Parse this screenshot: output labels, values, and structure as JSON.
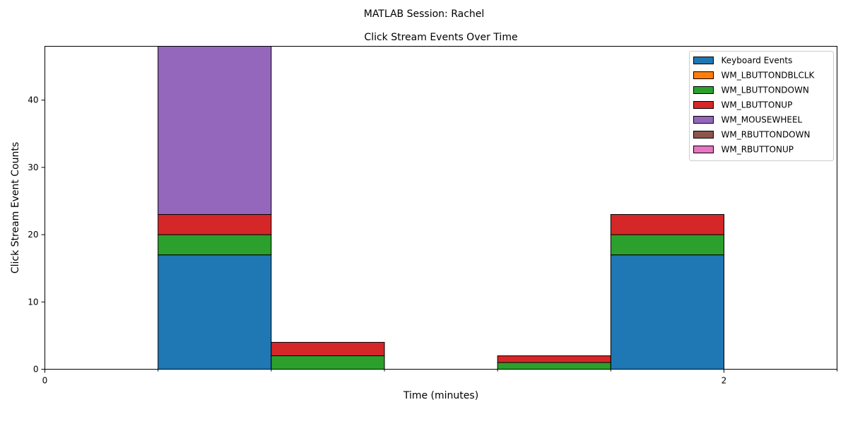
{
  "figure": {
    "suptitle": "MATLAB Session: Rachel"
  },
  "chart_data": {
    "type": "bar",
    "stacked": true,
    "title": "Click Stream Events Over Time",
    "xlabel": "Time (minutes)",
    "ylabel": "Click Stream Event Counts",
    "xlim": [
      0,
      2.333
    ],
    "ylim": [
      0,
      48
    ],
    "xticks": [
      0,
      2
    ],
    "yticks": [
      0,
      10,
      20,
      30,
      40
    ],
    "bin_width_minutes": 0.3333,
    "bins": [
      0,
      0.3333,
      0.6667,
      1.0,
      1.3333,
      1.6667,
      2.0
    ],
    "grid": false,
    "legend_position": "top-right",
    "series": [
      {
        "name": "Keyboard Events",
        "color": "#1f77b4",
        "values": [
          0,
          17,
          0,
          0,
          0,
          17,
          0
        ]
      },
      {
        "name": "WM_LBUTTONDBLCLK",
        "color": "#ff7f0e",
        "values": [
          0,
          0,
          0,
          0,
          0,
          0,
          0
        ]
      },
      {
        "name": "WM_LBUTTONDOWN",
        "color": "#2ca02c",
        "values": [
          0,
          3,
          2,
          0,
          1,
          3,
          0
        ]
      },
      {
        "name": "WM_LBUTTONUP",
        "color": "#d62728",
        "values": [
          0,
          3,
          2,
          0,
          1,
          3,
          0
        ]
      },
      {
        "name": "WM_MOUSEWHEEL",
        "color": "#9467bd",
        "values": [
          0,
          25,
          0,
          0,
          0,
          0,
          0
        ]
      },
      {
        "name": "WM_RBUTTONDOWN",
        "color": "#8c564b",
        "values": [
          0,
          0,
          0,
          0,
          0,
          0,
          0
        ]
      },
      {
        "name": "WM_RBUTTONUP",
        "color": "#e377c2",
        "values": [
          0,
          0,
          0,
          0,
          0,
          0,
          0
        ]
      }
    ]
  }
}
